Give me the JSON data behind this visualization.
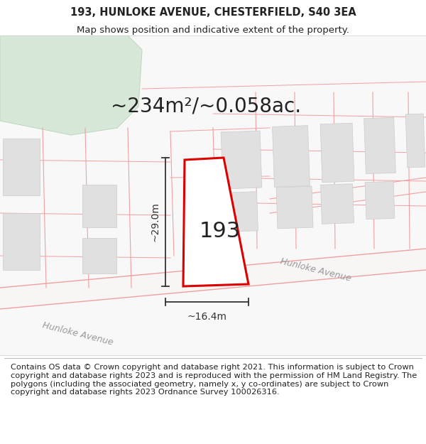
{
  "title_line1": "193, HUNLOKE AVENUE, CHESTERFIELD, S40 3EA",
  "title_line2": "Map shows position and indicative extent of the property.",
  "area_text": "~234m²/~0.058ac.",
  "label_193": "193",
  "dim_height": "~29.0m",
  "dim_width": "~16.4m",
  "road_label1": "Hunloke Avenue",
  "road_label2": "Hunloke Avenue",
  "footer_text": "Contains OS data © Crown copyright and database right 2021. This information is subject to Crown copyright and database rights 2023 and is reproduced with the permission of HM Land Registry. The polygons (including the associated geometry, namely x, y co-ordinates) are subject to Crown copyright and database rights 2023 Ordnance Survey 100026316.",
  "bg_color": "#ffffff",
  "plot_outline_color": "#dd0000",
  "building_fill": "#e0e0e0",
  "building_edge": "#cccccc",
  "road_line_color": "#f0a0a0",
  "parcel_color": "#f0a0a0",
  "green_fill": "#d8e8d8",
  "green_edge": "#c0d8c0",
  "dim_line_color": "#333333",
  "text_color": "#222222",
  "road_text_color": "#999999",
  "title_fontsize": 10.5,
  "subtitle_fontsize": 9.5,
  "area_fontsize": 20,
  "label_fontsize": 22,
  "footer_fontsize": 8.2,
  "road_fontsize": 9,
  "dim_fontsize": 10
}
